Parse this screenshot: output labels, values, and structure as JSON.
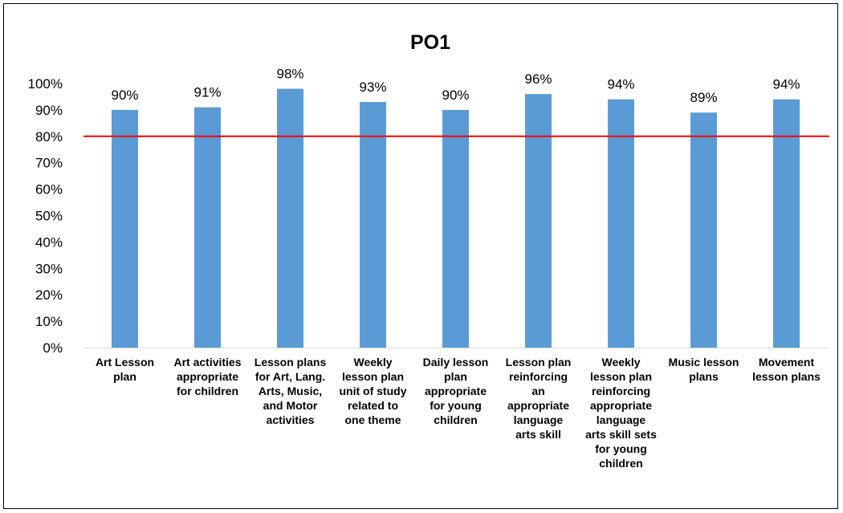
{
  "chart_data": {
    "type": "bar",
    "title": "PO1",
    "xlabel": "",
    "ylabel": "",
    "ylim": [
      0,
      100
    ],
    "ytick_step": 10,
    "tick_suffix": "%",
    "grid": false,
    "legend": "none",
    "categories": [
      [
        "Art Lesson",
        "plan"
      ],
      [
        "Art activities",
        "appropriate",
        "for children"
      ],
      [
        "Lesson plans",
        "for Art, Lang.",
        "Arts, Music,",
        "and Motor",
        "activities"
      ],
      [
        "Weekly",
        "lesson plan",
        "unit of study",
        "related to",
        "one theme"
      ],
      [
        "Daily lesson",
        "plan",
        "appropriate",
        "for young",
        "children"
      ],
      [
        "Lesson plan",
        "reinforcing",
        "an",
        "appropriate",
        "language",
        "arts skill"
      ],
      [
        "Weekly",
        "lesson plan",
        "reinforcing",
        "appropriate",
        "language",
        "arts skill sets",
        "for young",
        "children"
      ],
      [
        "Music lesson",
        "plans"
      ],
      [
        "Movement",
        "lesson plans"
      ]
    ],
    "values": [
      90,
      91,
      98,
      93,
      90,
      96,
      94,
      89,
      94
    ],
    "data_labels": [
      "90%",
      "91%",
      "98%",
      "93%",
      "90%",
      "96%",
      "94%",
      "89%",
      "94%"
    ],
    "reference_line": {
      "value": 80,
      "color": "#ff0000"
    },
    "colors": {
      "bar": "#5b9bd5",
      "axis": "#d9d9d9",
      "text": "#000000"
    }
  }
}
